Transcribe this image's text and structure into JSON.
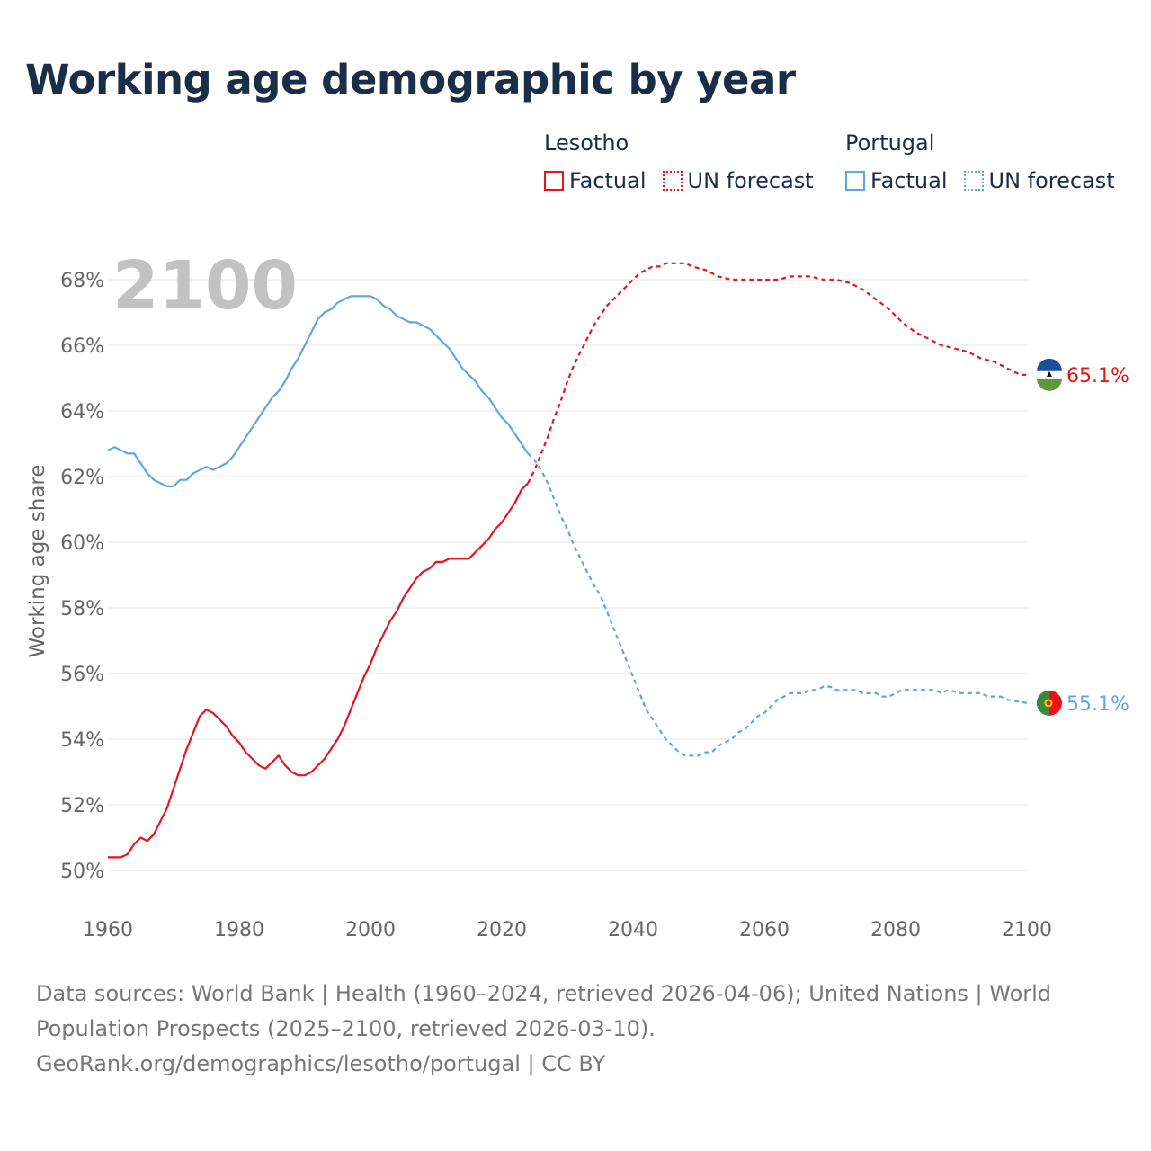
{
  "title": "Working age demographic by year",
  "colors": {
    "lesotho": "#e8141c",
    "portugal": "#5fa6e4",
    "grid": "#e6e6e6",
    "axis_text": "#666666",
    "year_watermark": "#c2c2c2"
  },
  "legend": {
    "groups": [
      {
        "name": "Lesotho",
        "factual": "Factual",
        "forecast": "UN forecast"
      },
      {
        "name": "Portugal",
        "factual": "Factual",
        "forecast": "UN forecast"
      }
    ]
  },
  "chart_data": {
    "type": "line",
    "title": "Working age demographic by year",
    "xlabel": "",
    "ylabel": "Working age share",
    "xlim": [
      1960,
      2100
    ],
    "ylim": [
      50,
      68
    ],
    "x_ticks": [
      "1960",
      "1980",
      "2000",
      "2020",
      "2040",
      "2060",
      "2080",
      "2100"
    ],
    "y_ticks": [
      "50%",
      "52%",
      "54%",
      "56%",
      "58%",
      "60%",
      "62%",
      "64%",
      "66%",
      "68%"
    ],
    "current_year_label": "2100",
    "factual_until": 2024,
    "series": [
      {
        "name": "Lesotho",
        "color": "#e8141c",
        "end_label": "65.1%",
        "flag_icon": "lesotho-flag-icon",
        "points": [
          [
            1960,
            50.4
          ],
          [
            1962,
            50.4
          ],
          [
            1963,
            50.5
          ],
          [
            1964,
            50.8
          ],
          [
            1965,
            51.0
          ],
          [
            1966,
            50.9
          ],
          [
            1967,
            51.1
          ],
          [
            1968,
            51.5
          ],
          [
            1969,
            51.9
          ],
          [
            1970,
            52.5
          ],
          [
            1971,
            53.1
          ],
          [
            1972,
            53.7
          ],
          [
            1973,
            54.2
          ],
          [
            1974,
            54.7
          ],
          [
            1975,
            54.9
          ],
          [
            1976,
            54.8
          ],
          [
            1977,
            54.6
          ],
          [
            1978,
            54.4
          ],
          [
            1979,
            54.1
          ],
          [
            1980,
            53.9
          ],
          [
            1981,
            53.6
          ],
          [
            1982,
            53.4
          ],
          [
            1983,
            53.2
          ],
          [
            1984,
            53.1
          ],
          [
            1985,
            53.3
          ],
          [
            1986,
            53.5
          ],
          [
            1987,
            53.2
          ],
          [
            1988,
            53.0
          ],
          [
            1989,
            52.9
          ],
          [
            1990,
            52.9
          ],
          [
            1991,
            53.0
          ],
          [
            1992,
            53.2
          ],
          [
            1993,
            53.4
          ],
          [
            1994,
            53.7
          ],
          [
            1995,
            54.0
          ],
          [
            1996,
            54.4
          ],
          [
            1997,
            54.9
          ],
          [
            1998,
            55.4
          ],
          [
            1999,
            55.9
          ],
          [
            2000,
            56.3
          ],
          [
            2001,
            56.8
          ],
          [
            2002,
            57.2
          ],
          [
            2003,
            57.6
          ],
          [
            2004,
            57.9
          ],
          [
            2005,
            58.3
          ],
          [
            2006,
            58.6
          ],
          [
            2007,
            58.9
          ],
          [
            2008,
            59.1
          ],
          [
            2009,
            59.2
          ],
          [
            2010,
            59.4
          ],
          [
            2011,
            59.4
          ],
          [
            2012,
            59.5
          ],
          [
            2013,
            59.5
          ],
          [
            2014,
            59.5
          ],
          [
            2015,
            59.5
          ],
          [
            2016,
            59.7
          ],
          [
            2017,
            59.9
          ],
          [
            2018,
            60.1
          ],
          [
            2019,
            60.4
          ],
          [
            2020,
            60.6
          ],
          [
            2021,
            60.9
          ],
          [
            2022,
            61.2
          ],
          [
            2023,
            61.6
          ],
          [
            2024,
            61.8
          ],
          [
            2025,
            62.2
          ],
          [
            2026,
            62.7
          ],
          [
            2027,
            63.2
          ],
          [
            2028,
            63.8
          ],
          [
            2029,
            64.3
          ],
          [
            2030,
            64.9
          ],
          [
            2031,
            65.4
          ],
          [
            2032,
            65.8
          ],
          [
            2033,
            66.2
          ],
          [
            2034,
            66.6
          ],
          [
            2035,
            66.9
          ],
          [
            2036,
            67.2
          ],
          [
            2037,
            67.4
          ],
          [
            2038,
            67.6
          ],
          [
            2039,
            67.8
          ],
          [
            2040,
            68.0
          ],
          [
            2041,
            68.2
          ],
          [
            2042,
            68.3
          ],
          [
            2043,
            68.4
          ],
          [
            2044,
            68.4
          ],
          [
            2045,
            68.5
          ],
          [
            2046,
            68.5
          ],
          [
            2048,
            68.5
          ],
          [
            2049,
            68.4
          ],
          [
            2051,
            68.3
          ],
          [
            2053,
            68.1
          ],
          [
            2055,
            68.0
          ],
          [
            2058,
            68.0
          ],
          [
            2062,
            68.0
          ],
          [
            2064,
            68.1
          ],
          [
            2067,
            68.1
          ],
          [
            2069,
            68.0
          ],
          [
            2071,
            68.0
          ],
          [
            2073,
            67.9
          ],
          [
            2075,
            67.7
          ],
          [
            2077,
            67.4
          ],
          [
            2079,
            67.1
          ],
          [
            2081,
            66.7
          ],
          [
            2083,
            66.4
          ],
          [
            2085,
            66.2
          ],
          [
            2087,
            66.0
          ],
          [
            2089,
            65.9
          ],
          [
            2091,
            65.8
          ],
          [
            2093,
            65.6
          ],
          [
            2095,
            65.5
          ],
          [
            2097,
            65.3
          ],
          [
            2099,
            65.1
          ],
          [
            2100,
            65.1
          ]
        ]
      },
      {
        "name": "Portugal",
        "color": "#5fa6e4",
        "end_label": "55.1%",
        "flag_icon": "portugal-flag-icon",
        "points": [
          [
            1960,
            62.8
          ],
          [
            1961,
            62.9
          ],
          [
            1962,
            62.8
          ],
          [
            1963,
            62.7
          ],
          [
            1964,
            62.7
          ],
          [
            1965,
            62.4
          ],
          [
            1966,
            62.1
          ],
          [
            1967,
            61.9
          ],
          [
            1968,
            61.8
          ],
          [
            1969,
            61.7
          ],
          [
            1970,
            61.7
          ],
          [
            1971,
            61.9
          ],
          [
            1972,
            61.9
          ],
          [
            1973,
            62.1
          ],
          [
            1974,
            62.2
          ],
          [
            1975,
            62.3
          ],
          [
            1976,
            62.2
          ],
          [
            1977,
            62.3
          ],
          [
            1978,
            62.4
          ],
          [
            1979,
            62.6
          ],
          [
            1980,
            62.9
          ],
          [
            1981,
            63.2
          ],
          [
            1982,
            63.5
          ],
          [
            1983,
            63.8
          ],
          [
            1984,
            64.1
          ],
          [
            1985,
            64.4
          ],
          [
            1986,
            64.6
          ],
          [
            1987,
            64.9
          ],
          [
            1988,
            65.3
          ],
          [
            1989,
            65.6
          ],
          [
            1990,
            66.0
          ],
          [
            1991,
            66.4
          ],
          [
            1992,
            66.8
          ],
          [
            1993,
            67.0
          ],
          [
            1994,
            67.1
          ],
          [
            1995,
            67.3
          ],
          [
            1996,
            67.4
          ],
          [
            1997,
            67.5
          ],
          [
            1998,
            67.5
          ],
          [
            2000,
            67.5
          ],
          [
            2001,
            67.4
          ],
          [
            2002,
            67.2
          ],
          [
            2003,
            67.1
          ],
          [
            2004,
            66.9
          ],
          [
            2005,
            66.8
          ],
          [
            2006,
            66.7
          ],
          [
            2007,
            66.7
          ],
          [
            2008,
            66.6
          ],
          [
            2009,
            66.5
          ],
          [
            2010,
            66.3
          ],
          [
            2011,
            66.1
          ],
          [
            2012,
            65.9
          ],
          [
            2013,
            65.6
          ],
          [
            2014,
            65.3
          ],
          [
            2015,
            65.1
          ],
          [
            2016,
            64.9
          ],
          [
            2017,
            64.6
          ],
          [
            2018,
            64.4
          ],
          [
            2019,
            64.1
          ],
          [
            2020,
            63.8
          ],
          [
            2021,
            63.6
          ],
          [
            2022,
            63.3
          ],
          [
            2023,
            63.0
          ],
          [
            2024,
            62.7
          ],
          [
            2025,
            62.5
          ],
          [
            2026,
            62.2
          ],
          [
            2027,
            61.8
          ],
          [
            2028,
            61.3
          ],
          [
            2029,
            60.8
          ],
          [
            2030,
            60.4
          ],
          [
            2031,
            59.9
          ],
          [
            2032,
            59.5
          ],
          [
            2033,
            59.1
          ],
          [
            2034,
            58.7
          ],
          [
            2035,
            58.4
          ],
          [
            2036,
            57.9
          ],
          [
            2037,
            57.4
          ],
          [
            2038,
            56.9
          ],
          [
            2039,
            56.4
          ],
          [
            2040,
            55.9
          ],
          [
            2041,
            55.4
          ],
          [
            2042,
            54.9
          ],
          [
            2043,
            54.6
          ],
          [
            2044,
            54.3
          ],
          [
            2045,
            54.0
          ],
          [
            2046,
            53.8
          ],
          [
            2047,
            53.6
          ],
          [
            2048,
            53.5
          ],
          [
            2050,
            53.5
          ],
          [
            2051,
            53.6
          ],
          [
            2052,
            53.6
          ],
          [
            2053,
            53.8
          ],
          [
            2054,
            53.9
          ],
          [
            2055,
            54.0
          ],
          [
            2056,
            54.2
          ],
          [
            2057,
            54.3
          ],
          [
            2058,
            54.5
          ],
          [
            2059,
            54.7
          ],
          [
            2060,
            54.8
          ],
          [
            2061,
            55.0
          ],
          [
            2062,
            55.2
          ],
          [
            2063,
            55.3
          ],
          [
            2064,
            55.4
          ],
          [
            2066,
            55.4
          ],
          [
            2067,
            55.5
          ],
          [
            2068,
            55.5
          ],
          [
            2069,
            55.6
          ],
          [
            2070,
            55.6
          ],
          [
            2071,
            55.5
          ],
          [
            2074,
            55.5
          ],
          [
            2075,
            55.4
          ],
          [
            2077,
            55.4
          ],
          [
            2078,
            55.3
          ],
          [
            2079,
            55.3
          ],
          [
            2081,
            55.5
          ],
          [
            2086,
            55.5
          ],
          [
            2087,
            55.4
          ],
          [
            2088,
            55.5
          ],
          [
            2090,
            55.4
          ],
          [
            2093,
            55.4
          ],
          [
            2094,
            55.3
          ],
          [
            2096,
            55.3
          ],
          [
            2097,
            55.2
          ],
          [
            2100,
            55.1
          ]
        ]
      }
    ]
  },
  "footer": {
    "sources": "Data sources: World Bank | Health (1960–2024, retrieved 2026-04-06); United Nations | World Population Prospects (2025–2100, retrieved 2026-03-10).",
    "credit": "GeoRank.org/demographics/lesotho/portugal | CC BY"
  }
}
